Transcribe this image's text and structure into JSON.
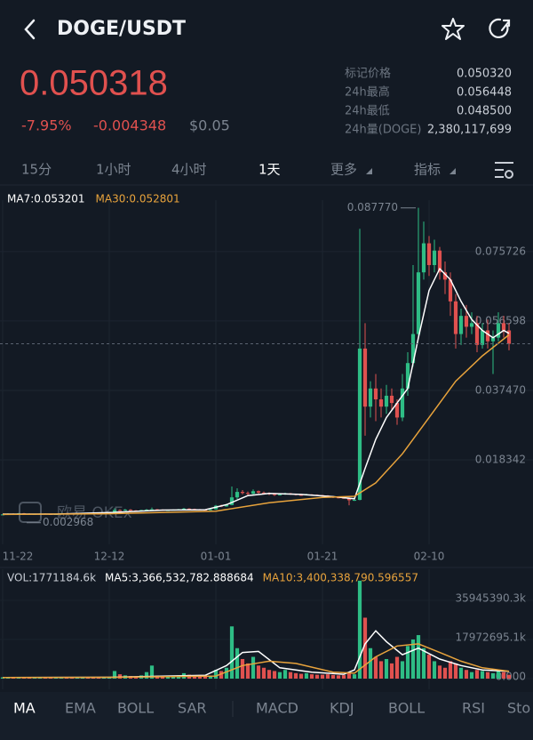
{
  "header": {
    "title": "DOGE/USDT"
  },
  "price": {
    "last": 0.050318,
    "change_pct": "-7.95%",
    "change_abs": "-0.004348",
    "usd": "$0.05"
  },
  "stats": [
    {
      "label": "标记价格",
      "value": "0.050320"
    },
    {
      "label": "24h最高",
      "value": "0.056448"
    },
    {
      "label": "24h最低",
      "value": "0.048500"
    },
    {
      "label": "24h量(DOGE)",
      "value": "2,380,117,699"
    }
  ],
  "intervals": [
    "15分",
    "1小时",
    "4小时",
    "1天",
    "更多",
    "指标"
  ],
  "watermark": "欧易 OKEx",
  "indicator_tabs": [
    "MA",
    "EMA",
    "BOLL",
    "SAR",
    "MACD",
    "KDJ",
    "BOLL",
    "RSI",
    "Sto"
  ],
  "chart_data": [
    {
      "type": "candlestick",
      "up_color": "#2ebd85",
      "down_color": "#e0514f",
      "xlim": [
        -0.5,
        99.5
      ],
      "xticks": [
        {
          "value": 0,
          "label": "11-22"
        },
        {
          "value": 20,
          "label": "12-12"
        },
        {
          "value": 40,
          "label": "01-01"
        },
        {
          "value": 60,
          "label": "01-21"
        },
        {
          "value": 80,
          "label": "02-10"
        }
      ],
      "ylim": [
        -0.002,
        0.0899
      ],
      "yticks": [
        0.018342,
        {
          "value": 0.03747,
          "label": "0.037470"
        },
        0.056598,
        0.075726
      ],
      "grid": true,
      "annotations": [
        {
          "value": 0.08777,
          "label": "0.087770"
        },
        {
          "value": 0.002968,
          "label": "0.002968"
        }
      ],
      "candles": [
        [
          0.0032,
          0.0034,
          0.0031,
          0.0033
        ],
        [
          0.0033,
          0.0036,
          0.0032,
          0.0035
        ],
        [
          0.0035,
          0.0036,
          0.0033,
          0.0034
        ],
        [
          0.0034,
          0.0037,
          0.0033,
          0.0036
        ],
        [
          0.0036,
          0.0037,
          0.0034,
          0.0035
        ],
        [
          0.0035,
          0.0036,
          0.0032,
          0.0033
        ],
        [
          0.0033,
          0.0035,
          0.0032,
          0.0034
        ],
        [
          0.0034,
          0.0036,
          0.0033,
          0.0035
        ],
        [
          0.0035,
          0.0036,
          0.0033,
          0.0034
        ],
        [
          0.0034,
          0.0035,
          0.0032,
          0.0033
        ],
        [
          0.0033,
          0.0035,
          0.0032,
          0.0034
        ],
        [
          0.0034,
          0.0037,
          0.0033,
          0.0036
        ],
        [
          0.0036,
          0.0037,
          0.0034,
          0.0035
        ],
        [
          0.0035,
          0.0036,
          0.0033,
          0.0034
        ],
        [
          0.0034,
          0.0036,
          0.0033,
          0.0035
        ],
        [
          0.0035,
          0.0038,
          0.0034,
          0.0037
        ],
        [
          0.0037,
          0.0038,
          0.0035,
          0.0036
        ],
        [
          0.0036,
          0.0037,
          0.0034,
          0.0035
        ],
        [
          0.0035,
          0.0036,
          0.0033,
          0.0034
        ],
        [
          0.0034,
          0.0037,
          0.0033,
          0.0036
        ],
        [
          0.0036,
          0.0039,
          0.0035,
          0.0037
        ],
        [
          0.0037,
          0.005,
          0.0036,
          0.0045
        ],
        [
          0.0045,
          0.0047,
          0.0042,
          0.0044
        ],
        [
          0.0044,
          0.0048,
          0.0043,
          0.0046
        ],
        [
          0.0046,
          0.0047,
          0.0043,
          0.0044
        ],
        [
          0.0044,
          0.0045,
          0.0041,
          0.0042
        ],
        [
          0.0042,
          0.0046,
          0.0041,
          0.0045
        ],
        [
          0.0045,
          0.0048,
          0.0044,
          0.0046
        ],
        [
          0.0046,
          0.0052,
          0.0045,
          0.0047
        ],
        [
          0.0047,
          0.0048,
          0.0045,
          0.0046
        ],
        [
          0.0046,
          0.0047,
          0.0043,
          0.0044
        ],
        [
          0.0044,
          0.0046,
          0.0043,
          0.0045
        ],
        [
          0.0045,
          0.0047,
          0.0044,
          0.0046
        ],
        [
          0.0046,
          0.0048,
          0.0045,
          0.0047
        ],
        [
          0.0047,
          0.0051,
          0.0046,
          0.0049
        ],
        [
          0.0049,
          0.005,
          0.0047,
          0.0048
        ],
        [
          0.0048,
          0.0049,
          0.0046,
          0.0047
        ],
        [
          0.0047,
          0.0048,
          0.0045,
          0.0046
        ],
        [
          0.0046,
          0.0047,
          0.0044,
          0.0045
        ],
        [
          0.0045,
          0.0048,
          0.0044,
          0.0047
        ],
        [
          0.0047,
          0.0059,
          0.0046,
          0.0057
        ],
        [
          0.0057,
          0.006,
          0.0053,
          0.0055
        ],
        [
          0.0055,
          0.0062,
          0.0054,
          0.0059
        ],
        [
          0.0059,
          0.011,
          0.0058,
          0.008
        ],
        [
          0.008,
          0.0105,
          0.0075,
          0.0095
        ],
        [
          0.0095,
          0.01,
          0.0088,
          0.0092
        ],
        [
          0.0092,
          0.0096,
          0.0085,
          0.009
        ],
        [
          0.009,
          0.0102,
          0.0088,
          0.0097
        ],
        [
          0.0097,
          0.0099,
          0.009,
          0.0093
        ],
        [
          0.0093,
          0.0096,
          0.0089,
          0.0092
        ],
        [
          0.0092,
          0.0094,
          0.0086,
          0.0089
        ],
        [
          0.0089,
          0.0091,
          0.0084,
          0.0087
        ],
        [
          0.0087,
          0.009,
          0.0085,
          0.0088
        ],
        [
          0.0088,
          0.0093,
          0.0087,
          0.0091
        ],
        [
          0.0091,
          0.0092,
          0.0087,
          0.0089
        ],
        [
          0.0089,
          0.009,
          0.0085,
          0.0087
        ],
        [
          0.0087,
          0.0089,
          0.0084,
          0.0086
        ],
        [
          0.0086,
          0.009,
          0.0085,
          0.0088
        ],
        [
          0.0088,
          0.0089,
          0.0085,
          0.0087
        ],
        [
          0.0087,
          0.0088,
          0.0084,
          0.0086
        ],
        [
          0.0086,
          0.0087,
          0.0083,
          0.0085
        ],
        [
          0.0085,
          0.0086,
          0.008,
          0.0082
        ],
        [
          0.0082,
          0.0084,
          0.0078,
          0.008
        ],
        [
          0.008,
          0.0082,
          0.0077,
          0.0079
        ],
        [
          0.0079,
          0.0081,
          0.0076,
          0.0078
        ],
        [
          0.0078,
          0.008,
          0.0058,
          0.0072
        ],
        [
          0.0072,
          0.0076,
          0.007,
          0.0073
        ],
        [
          0.0073,
          0.082,
          0.0072,
          0.049
        ],
        [
          0.049,
          0.056,
          0.025,
          0.033
        ],
        [
          0.033,
          0.04,
          0.03,
          0.038
        ],
        [
          0.038,
          0.042,
          0.029,
          0.035
        ],
        [
          0.035,
          0.038,
          0.03,
          0.033
        ],
        [
          0.033,
          0.039,
          0.031,
          0.036
        ],
        [
          0.036,
          0.038,
          0.032,
          0.034
        ],
        [
          0.034,
          0.035,
          0.028,
          0.03
        ],
        [
          0.03,
          0.042,
          0.029,
          0.038
        ],
        [
          0.038,
          0.048,
          0.036,
          0.045
        ],
        [
          0.045,
          0.072,
          0.044,
          0.053
        ],
        [
          0.053,
          0.0878,
          0.052,
          0.07
        ],
        [
          0.07,
          0.084,
          0.068,
          0.078
        ],
        [
          0.078,
          0.08,
          0.069,
          0.072
        ],
        [
          0.072,
          0.079,
          0.07,
          0.076
        ],
        [
          0.076,
          0.077,
          0.068,
          0.07
        ],
        [
          0.07,
          0.073,
          0.064,
          0.068
        ],
        [
          0.068,
          0.07,
          0.058,
          0.062
        ],
        [
          0.062,
          0.064,
          0.049,
          0.053
        ],
        [
          0.053,
          0.06,
          0.05,
          0.058
        ],
        [
          0.058,
          0.061,
          0.052,
          0.055
        ],
        [
          0.055,
          0.059,
          0.053,
          0.056
        ],
        [
          0.056,
          0.058,
          0.048,
          0.05
        ],
        [
          0.05,
          0.056,
          0.049,
          0.054
        ],
        [
          0.054,
          0.057,
          0.049,
          0.051
        ],
        [
          0.051,
          0.054,
          0.042,
          0.052
        ],
        [
          0.052,
          0.059,
          0.051,
          0.056
        ],
        [
          0.056,
          0.058,
          0.052,
          0.054
        ],
        [
          0.054,
          0.056,
          0.0485,
          0.0503
        ]
      ],
      "series": [
        {
          "name": "MA7:0.053201",
          "color": "#ffffff",
          "x": [
            0,
            10,
            20,
            30,
            38,
            42,
            46,
            50,
            56,
            62,
            66,
            68,
            70,
            72,
            74,
            76,
            78,
            80,
            82,
            84,
            86,
            88,
            90,
            92,
            94,
            95
          ],
          "values": [
            0.0034,
            0.0034,
            0.0038,
            0.0045,
            0.0046,
            0.006,
            0.0085,
            0.0091,
            0.0088,
            0.0082,
            0.0076,
            0.016,
            0.024,
            0.03,
            0.034,
            0.038,
            0.052,
            0.065,
            0.071,
            0.068,
            0.062,
            0.057,
            0.054,
            0.052,
            0.054,
            0.0532
          ]
        },
        {
          "name": "MA30:0.052801",
          "color": "#e8a33c",
          "x": [
            0,
            20,
            40,
            50,
            60,
            66,
            70,
            75,
            80,
            85,
            90,
            95
          ],
          "values": [
            0.0033,
            0.0035,
            0.0042,
            0.0065,
            0.008,
            0.0083,
            0.012,
            0.02,
            0.03,
            0.04,
            0.047,
            0.0528
          ]
        }
      ]
    },
    {
      "type": "bar",
      "label": "VOL:1771184.6k",
      "ylim": [
        0,
        47000000
      ],
      "yticks": [
        {
          "value": 0,
          "label": "0.000"
        },
        {
          "value": 17972695.1,
          "label": "17972695.1k"
        },
        {
          "value": 35945390.3,
          "label": "35945390.3k"
        }
      ],
      "values": [
        600000,
        500000,
        700000,
        450000,
        500000,
        400000,
        800000,
        500000,
        450000,
        400000,
        500000,
        600000,
        450000,
        400000,
        500000,
        700000,
        500000,
        400000,
        450000,
        600000,
        800000,
        3500000,
        2000000,
        1500000,
        1200000,
        1000000,
        1500000,
        3000000,
        6000000,
        1400000,
        1000000,
        1100000,
        1300000,
        1500000,
        2500000,
        1800000,
        1200000,
        1000000,
        900000,
        1200000,
        4000000,
        3500000,
        5000000,
        24000000,
        14000000,
        9000000,
        7000000,
        10000000,
        6000000,
        5000000,
        4000000,
        3500000,
        3000000,
        4000000,
        3000000,
        2500000,
        2200000,
        2500000,
        2000000,
        1800000,
        1800000,
        2000000,
        1700000,
        1500000,
        1600000,
        2500000,
        2000000,
        45000000,
        28000000,
        14000000,
        10000000,
        8000000,
        9000000,
        7000000,
        10000000,
        8000000,
        15000000,
        18000000,
        20000000,
        14000000,
        11000000,
        8000000,
        6000000,
        5000000,
        8000000,
        7000000,
        5000000,
        4000000,
        3000000,
        4000000,
        3500000,
        3000000,
        2500000,
        4000000,
        3000000,
        1771184.6
      ],
      "series": [
        {
          "name": "MA5:3,366,532,782.888684",
          "color": "#ffffff",
          "x": [
            0,
            20,
            38,
            42,
            45,
            48,
            52,
            58,
            64,
            66,
            68,
            70,
            72,
            75,
            78,
            82,
            86,
            90,
            95
          ],
          "values": [
            500000,
            600000,
            1500000,
            6000000,
            12000000,
            12500000,
            5000000,
            3000000,
            2000000,
            4000000,
            16000000,
            22000000,
            17000000,
            11000000,
            14000000,
            9000000,
            6000000,
            4000000,
            3400000
          ]
        },
        {
          "name": "MA10:3,400,338,790.596557",
          "color": "#e8a33c",
          "x": [
            0,
            20,
            40,
            45,
            50,
            55,
            62,
            66,
            70,
            74,
            78,
            82,
            86,
            90,
            95
          ],
          "values": [
            500000,
            600000,
            1200000,
            6000000,
            8000000,
            7000000,
            3000000,
            2500000,
            10000000,
            15000000,
            16000000,
            12000000,
            8000000,
            5000000,
            3400000
          ]
        }
      ]
    }
  ]
}
